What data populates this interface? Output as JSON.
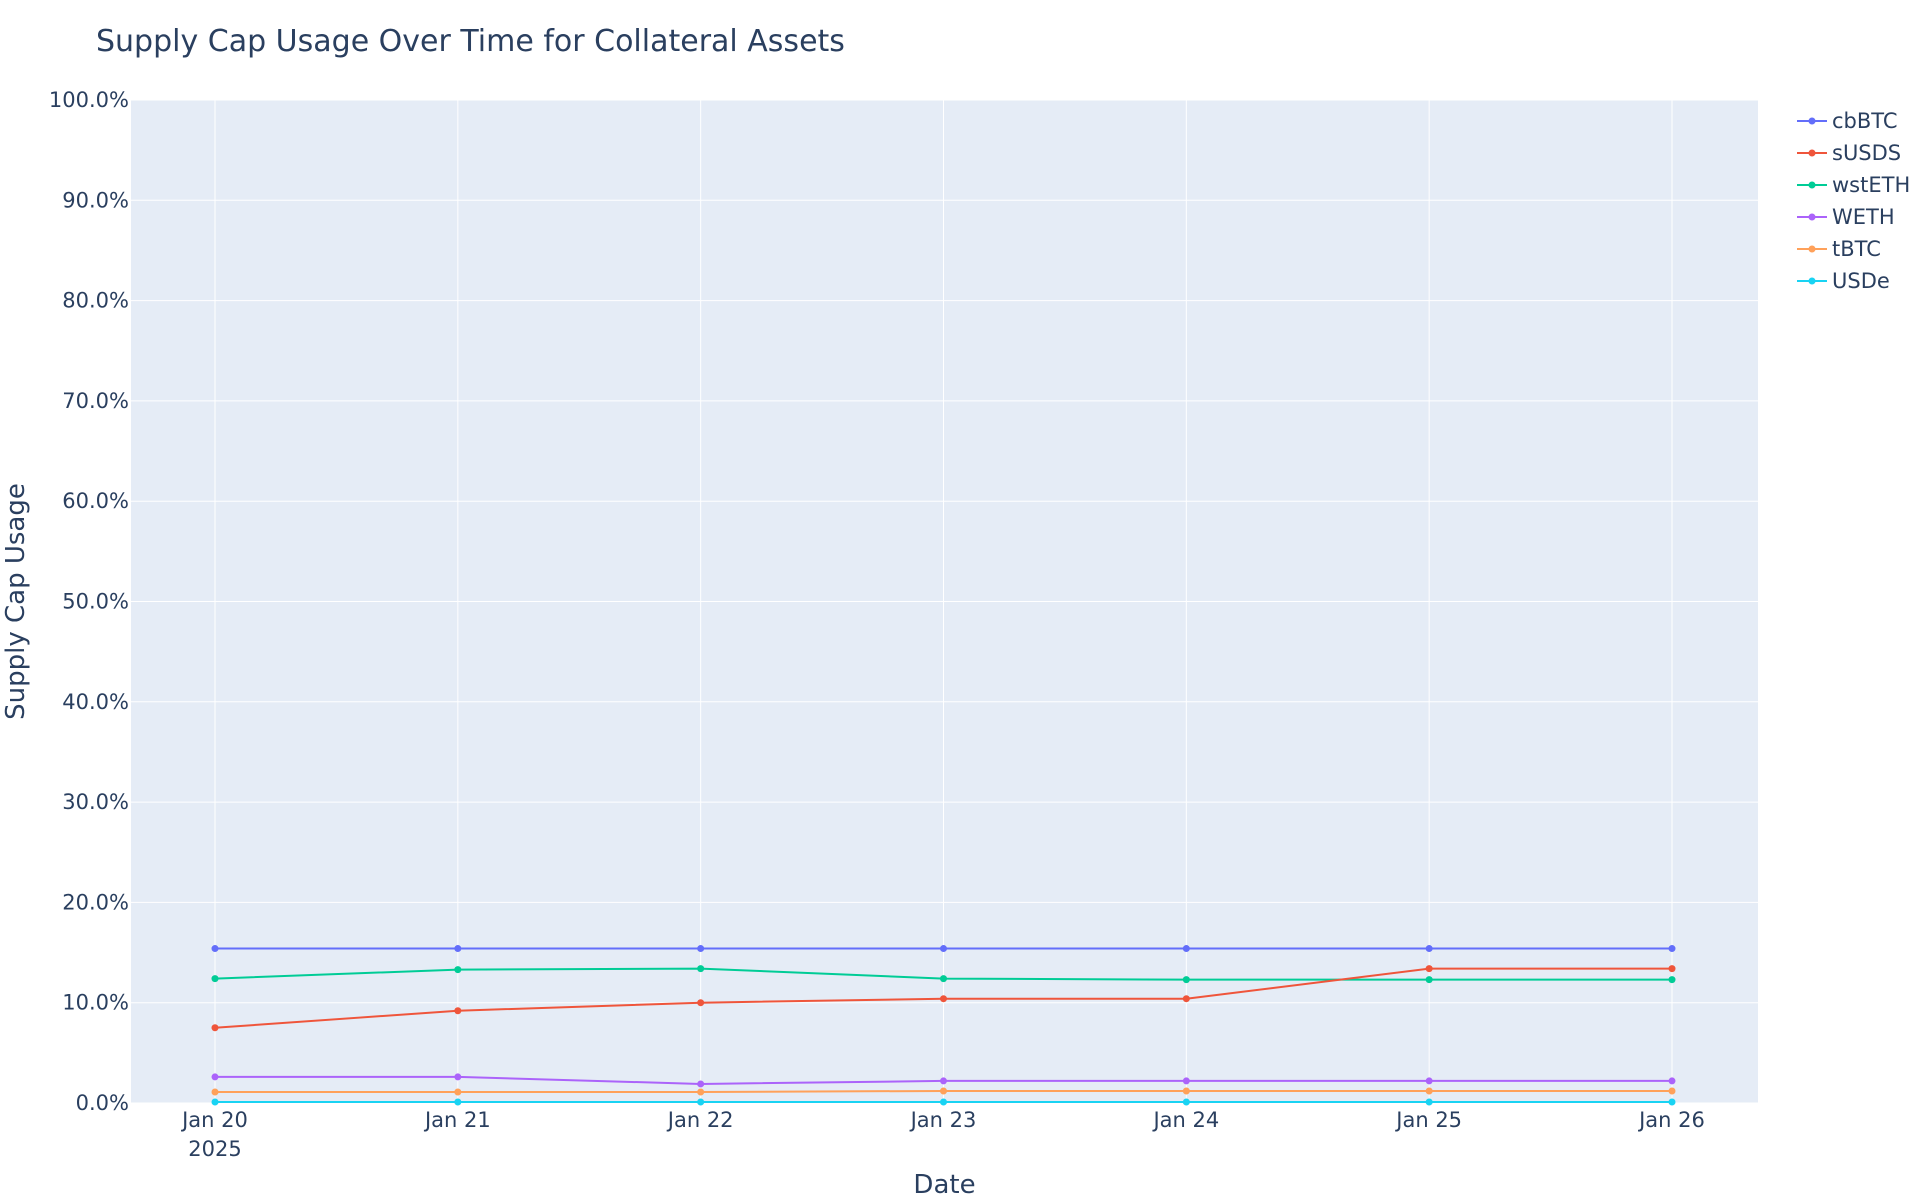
{
  "chart_data": {
    "type": "line",
    "title": "Supply Cap Usage Over Time for Collateral Assets",
    "xlabel": "Date",
    "ylabel": "Supply Cap Usage",
    "x": [
      "2025-01-20",
      "2025-01-21",
      "2025-01-22",
      "2025-01-23",
      "2025-01-24",
      "2025-01-25",
      "2025-01-26"
    ],
    "x_tick_labels": [
      "Jan 20",
      "Jan 21",
      "Jan 22",
      "Jan 23",
      "Jan 24",
      "Jan 25",
      "Jan 26"
    ],
    "x_tick_sublabel": "2025",
    "ylim": [
      0,
      100
    ],
    "y_ticks": [
      0,
      10,
      20,
      30,
      40,
      50,
      60,
      70,
      80,
      90,
      100
    ],
    "y_tick_labels": [
      "0.0%",
      "10.0%",
      "20.0%",
      "30.0%",
      "40.0%",
      "50.0%",
      "60.0%",
      "70.0%",
      "80.0%",
      "90.0%",
      "100.0%"
    ],
    "grid": true,
    "legend_position": "top-right",
    "series": [
      {
        "name": "cbBTC",
        "color": "#636efa",
        "values": [
          15.4,
          15.4,
          15.4,
          15.4,
          15.4,
          15.4,
          15.4
        ]
      },
      {
        "name": "sUSDS",
        "color": "#ef553b",
        "values": [
          7.5,
          9.2,
          10.0,
          10.4,
          10.4,
          13.4,
          13.4
        ]
      },
      {
        "name": "wstETH",
        "color": "#00cc96",
        "values": [
          12.4,
          13.3,
          13.4,
          12.4,
          12.3,
          12.3,
          12.3
        ]
      },
      {
        "name": "WETH",
        "color": "#ab63fa",
        "values": [
          2.6,
          2.6,
          1.9,
          2.2,
          2.2,
          2.2,
          2.2
        ]
      },
      {
        "name": "tBTC",
        "color": "#ffa15a",
        "values": [
          1.1,
          1.1,
          1.1,
          1.2,
          1.2,
          1.2,
          1.2
        ]
      },
      {
        "name": "USDe",
        "color": "#19d3f3",
        "values": [
          0.1,
          0.1,
          0.1,
          0.1,
          0.1,
          0.1,
          0.1
        ]
      }
    ]
  }
}
